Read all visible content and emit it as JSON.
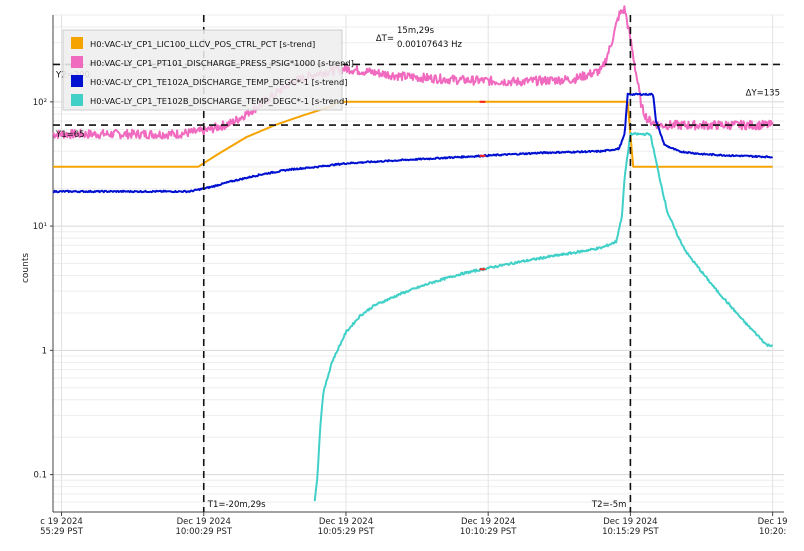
{
  "chart_data": {
    "type": "line",
    "ylabel": "counts",
    "y_scale": "log",
    "ylim": [
      0.05,
      500
    ],
    "y_tick_labels": [
      "0.1",
      "1",
      "10¹",
      "10²"
    ],
    "grid": true,
    "legend_placement": "top-left",
    "x_tick_labels": [
      [
        "c 19 2024",
        "55:29 PST"
      ],
      [
        "Dec 19 2024",
        "10:00:29 PST"
      ],
      [
        "Dec 19 2024",
        "10:05:29 PST"
      ],
      [
        "Dec 19 2024",
        "10:10:29 PST"
      ],
      [
        "Dec 19 2024",
        "10:15:29 PST"
      ],
      [
        "Dec 19",
        "10:20:"
      ]
    ],
    "x_ticks_min": [
      -25,
      -20,
      -15,
      -10,
      -5,
      0
    ],
    "x_range_min": [
      -25.3,
      0.4
    ],
    "series": [
      {
        "name": "H0:VAC-LY_CP1_LIC100_LLCV_POS_CTRL_PCT [s-trend]",
        "color": "#f5a300",
        "x": [
          -25.3,
          -20.2,
          -19.5,
          -18.5,
          -17.5,
          -16.5,
          -15.5,
          -15.3,
          -5.1,
          -4.9,
          0.0
        ],
        "y": [
          30,
          30,
          38,
          52,
          65,
          78,
          92,
          100,
          100,
          30,
          30
        ],
        "noise": 0
      },
      {
        "name": "H0:VAC-LY_CP1_PT101_DISCHARGE_PRESS_PSIG*1000 [s-trend]",
        "color": "#f06bbf",
        "x": [
          -25.3,
          -21.0,
          -20.0,
          -19.0,
          -18.0,
          -17.0,
          -16.0,
          -15.0,
          -13.0,
          -11.0,
          -9.0,
          -7.0,
          -6.0,
          -5.7,
          -5.4,
          -5.2,
          -5.0,
          -4.8,
          -4.6,
          -4.4,
          -4.0,
          -2.0,
          0.0
        ],
        "y": [
          55,
          55,
          58,
          68,
          95,
          140,
          170,
          185,
          160,
          150,
          145,
          152,
          180,
          280,
          500,
          560,
          320,
          170,
          90,
          72,
          65,
          65,
          65
        ],
        "noise": 0.12
      },
      {
        "name": "H0:VAC-LY_CP1_TE102A_DISCHARGE_TEMP_DEGC*-1 [s-trend]",
        "color": "#0010d0",
        "x": [
          -25.3,
          -20.5,
          -19.8,
          -19.0,
          -18.0,
          -17.0,
          -16.0,
          -15.0,
          -13.0,
          -10.0,
          -8.0,
          -6.0,
          -5.4,
          -5.2,
          -5.1,
          -5.0,
          -4.2,
          -4.1,
          -3.8,
          -3.3,
          -2.5,
          -1.5,
          0.0
        ],
        "y": [
          19,
          19,
          20.5,
          23,
          26,
          28.5,
          30,
          32,
          34,
          37,
          39,
          40,
          42,
          55,
          115,
          115,
          115,
          70,
          45,
          40,
          38,
          37,
          36
        ],
        "noise": 0.02
      },
      {
        "name": "H0:VAC-LY_CP1_TE102B_DISCHARGE_TEMP_DEGC*-1 [s-trend]",
        "color": "#40d0c8",
        "x": [
          -16.1,
          -16.0,
          -15.9,
          -15.8,
          -15.5,
          -15.0,
          -14.5,
          -14.0,
          -13.0,
          -12.0,
          -11.0,
          -10.0,
          -9.0,
          -8.0,
          -7.0,
          -6.0,
          -5.5,
          -5.3,
          -5.2,
          -5.0,
          -4.9,
          -4.3,
          -4.0,
          -3.7,
          -3.3,
          -3.0,
          -2.5,
          -2.0,
          -1.5,
          -1.0,
          -0.5,
          -0.2,
          0.0
        ],
        "y": [
          0.06,
          0.1,
          0.25,
          0.45,
          0.8,
          1.4,
          1.9,
          2.3,
          2.9,
          3.5,
          4.1,
          4.6,
          5.1,
          5.6,
          6.1,
          6.7,
          7.5,
          12,
          25,
          55,
          55,
          55,
          26,
          13,
          8,
          6,
          4.3,
          3.1,
          2.3,
          1.7,
          1.3,
          1.1,
          1.1
        ],
        "noise": 0.03
      }
    ],
    "cursors": {
      "T1": "T1=-20m,29s",
      "T2": "T2=-5m",
      "T1_x": -20.0,
      "T2_x": -5.0,
      "Y1": "Y1=65",
      "Y2": "Y2=200",
      "Y1_y": 65,
      "Y2_y": 200,
      "dT_prefix": "ΔT=",
      "dT": "15m,29s",
      "freq": "0.00107643 Hz",
      "dY": "ΔY=135"
    },
    "gap_marker_color": "#ff2020",
    "gap_x": [
      -10.3,
      -10.1
    ]
  }
}
